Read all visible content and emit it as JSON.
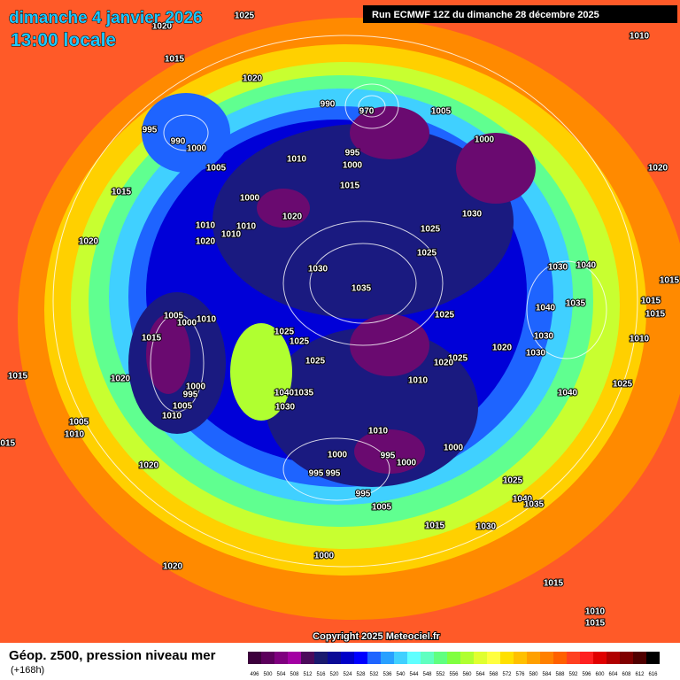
{
  "header": {
    "date": "dimanche 4 janvier 2026",
    "time": "13:00 locale",
    "run": "Run ECMWF 12Z du dimanche 28 décembre 2025"
  },
  "map": {
    "isobar_labels": [
      "1025",
      "1020",
      "1010",
      "1015",
      "1020",
      "995",
      "990",
      "1000",
      "1005",
      "1015",
      "1020",
      "1000",
      "1010",
      "1020",
      "1010",
      "1010",
      "1020",
      "1010",
      "995",
      "1000",
      "1015",
      "990",
      "970",
      "1005",
      "1000",
      "1020",
      "1030",
      "1025",
      "1025",
      "1030",
      "1035",
      "1040",
      "1030",
      "1035",
      "1040",
      "1015",
      "1015",
      "1015",
      "1010",
      "1005",
      "1000",
      "1010",
      "1015",
      "1025",
      "1025",
      "1025",
      "1025",
      "1020",
      "1030",
      "1030",
      "1025",
      "1020",
      "1010",
      "1040",
      "1025",
      "1020",
      "1000",
      "995",
      "1005",
      "1010",
      "1015",
      "1040",
      "1035",
      "1030",
      "1005",
      "1010",
      "1015",
      "1010",
      "1000",
      "1020",
      "1000",
      "995",
      "1000",
      "995",
      "995",
      "995",
      "1005",
      "1025",
      "1040",
      "1035",
      "1015",
      "1030",
      "1000",
      "1020",
      "1015",
      "1010",
      "1015"
    ]
  },
  "footer": {
    "title": "Géop. z500, pression niveau mer",
    "lead": "(+168h)",
    "copyright": "Copyright 2025 Meteociel.fr"
  },
  "legend": {
    "values": [
      496,
      500,
      504,
      508,
      512,
      516,
      520,
      524,
      528,
      532,
      536,
      540,
      544,
      548,
      552,
      556,
      560,
      564,
      568,
      572,
      576,
      580,
      584,
      588,
      592,
      596,
      600,
      604,
      608,
      612,
      616
    ],
    "colors": [
      "#3c003c",
      "#5c005c",
      "#7f007f",
      "#a300a3",
      "#4b0a5a",
      "#1a1a6e",
      "#0a0a96",
      "#0000c8",
      "#0000ff",
      "#1e64ff",
      "#28a0ff",
      "#40d0ff",
      "#60ffff",
      "#60ffc0",
      "#60ff80",
      "#80ff40",
      "#b0ff30",
      "#e0ff30",
      "#ffff40",
      "#ffe000",
      "#ffc000",
      "#ffa000",
      "#ff8000",
      "#ff6000",
      "#ff4020",
      "#ff2020",
      "#e00000",
      "#b00000",
      "#800000",
      "#500000",
      "#000000"
    ]
  }
}
